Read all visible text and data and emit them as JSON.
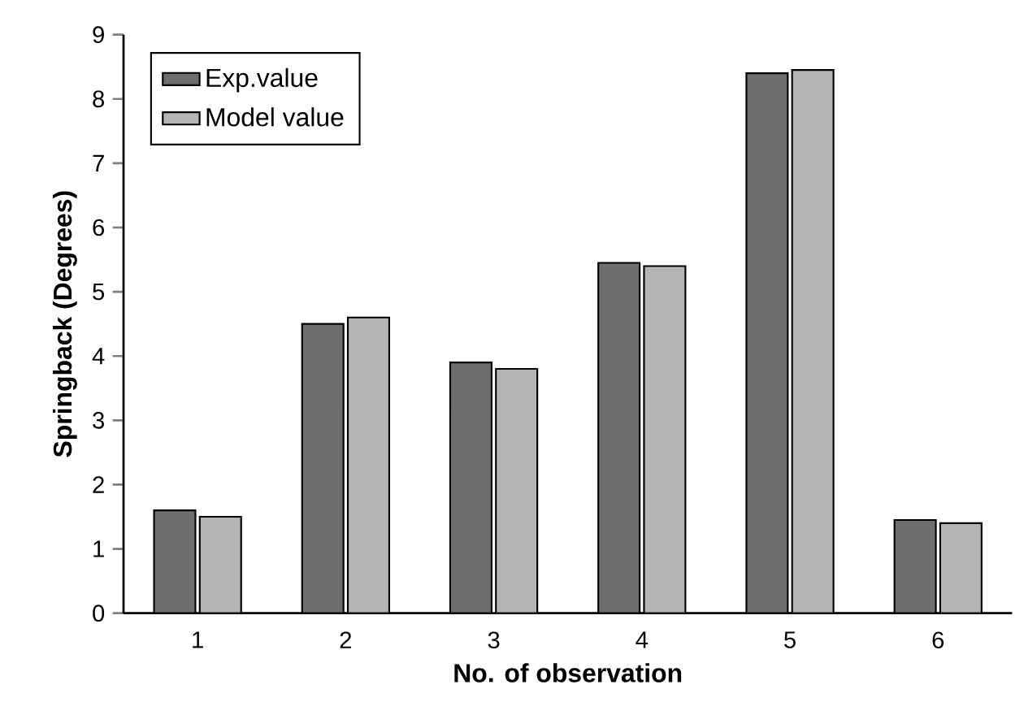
{
  "chart_data": {
    "type": "bar",
    "xlabel": "No. of observation",
    "ylabel": "Springback (Degrees)",
    "categories": [
      "1",
      "2",
      "3",
      "4",
      "5",
      "6"
    ],
    "series": [
      {
        "name": "Exp.value",
        "color": "#6e6e6e",
        "values": [
          1.6,
          4.5,
          3.9,
          5.45,
          8.4,
          1.45
        ]
      },
      {
        "name": "Model value",
        "color": "#b4b4b4",
        "values": [
          1.5,
          4.6,
          3.8,
          5.4,
          8.45,
          1.4
        ]
      }
    ],
    "ylim": [
      0,
      9
    ],
    "yticks": [
      0,
      1,
      2,
      3,
      4,
      5,
      6,
      7,
      8,
      9
    ],
    "legend": "top left"
  }
}
